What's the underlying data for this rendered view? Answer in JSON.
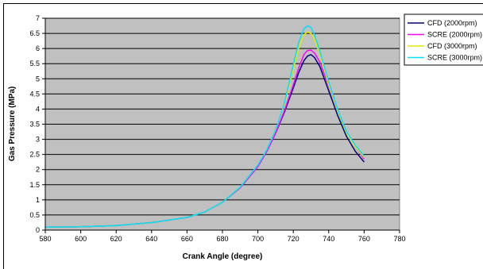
{
  "chart_data": {
    "type": "line",
    "title": "",
    "xlabel": "Crank Angle (degree)",
    "ylabel": "Gas Pressure (MPa)",
    "xlim": [
      580,
      780
    ],
    "ylim": [
      0,
      7
    ],
    "x_ticks": [
      580,
      600,
      620,
      640,
      660,
      680,
      700,
      720,
      740,
      760,
      780
    ],
    "y_ticks": [
      0,
      0.5,
      1,
      1.5,
      2,
      2.5,
      3,
      3.5,
      4,
      4.5,
      5,
      5.5,
      6,
      6.5,
      7
    ],
    "grid": "horizontal",
    "legend_position": "right",
    "plot_background": "#c0c0c0",
    "series": [
      {
        "name": "CFD (2000rpm)",
        "color": "#000080",
        "x": [
          580,
          600,
          620,
          640,
          660,
          670,
          680,
          690,
          700,
          705,
          710,
          715,
          720,
          723,
          726,
          728,
          730,
          732,
          735,
          740,
          745,
          750,
          755,
          760
        ],
        "y": [
          0.1,
          0.11,
          0.15,
          0.25,
          0.42,
          0.6,
          0.92,
          1.4,
          2.1,
          2.6,
          3.2,
          3.9,
          4.7,
          5.2,
          5.6,
          5.75,
          5.8,
          5.7,
          5.4,
          4.6,
          3.8,
          3.1,
          2.6,
          2.25
        ]
      },
      {
        "name": "SCRE (2000rpm)",
        "color": "#ff00ff",
        "x": [
          580,
          600,
          620,
          640,
          660,
          670,
          680,
          690,
          700,
          705,
          710,
          715,
          720,
          723,
          726,
          728,
          730,
          732,
          735,
          740,
          745,
          750,
          755,
          760
        ],
        "y": [
          0.1,
          0.11,
          0.15,
          0.25,
          0.42,
          0.6,
          0.92,
          1.4,
          2.1,
          2.6,
          3.2,
          3.95,
          4.8,
          5.35,
          5.8,
          5.93,
          5.95,
          5.85,
          5.55,
          4.75,
          3.95,
          3.25,
          2.75,
          2.35
        ]
      },
      {
        "name": "CFD (3000rpm)",
        "color": "#e8e800",
        "x": [
          580,
          600,
          620,
          640,
          660,
          670,
          680,
          690,
          700,
          705,
          710,
          715,
          720,
          723,
          726,
          728,
          730,
          732,
          735,
          740,
          745,
          750,
          755,
          760
        ],
        "y": [
          0.1,
          0.11,
          0.15,
          0.25,
          0.42,
          0.6,
          0.92,
          1.42,
          2.15,
          2.65,
          3.3,
          4.15,
          5.3,
          6.0,
          6.45,
          6.55,
          6.5,
          6.3,
          5.8,
          4.8,
          3.95,
          3.2,
          2.75,
          2.4
        ]
      },
      {
        "name": "SCRE (3000rpm)",
        "color": "#00e0ff",
        "x": [
          580,
          600,
          620,
          640,
          660,
          670,
          680,
          690,
          700,
          705,
          710,
          715,
          720,
          723,
          726,
          728,
          730,
          732,
          735,
          740,
          745,
          750,
          755,
          760
        ],
        "y": [
          0.1,
          0.11,
          0.15,
          0.25,
          0.42,
          0.6,
          0.92,
          1.42,
          2.15,
          2.65,
          3.3,
          4.2,
          5.45,
          6.2,
          6.65,
          6.75,
          6.7,
          6.45,
          5.9,
          4.9,
          4.0,
          3.25,
          2.8,
          2.45
        ]
      }
    ]
  }
}
